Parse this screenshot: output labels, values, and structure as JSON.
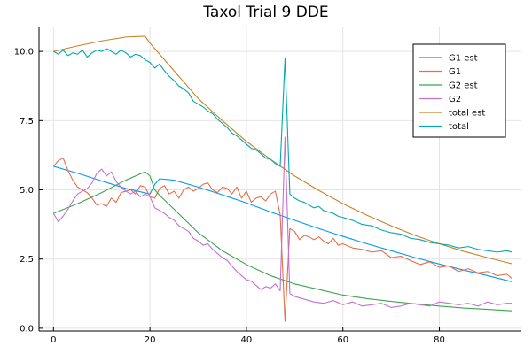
{
  "chart_data": {
    "type": "line",
    "title": "Taxol Trial 9 DDE",
    "xlabel": "",
    "ylabel": "",
    "xlim": [
      -3,
      97
    ],
    "ylim": [
      -0.1,
      10.9
    ],
    "xticks": [
      0,
      20,
      40,
      60,
      80
    ],
    "yticks": [
      0.0,
      2.5,
      5.0,
      7.5,
      10.0
    ],
    "ytick_labels": [
      "0.0",
      "2.5",
      "5.0",
      "7.5",
      "10.0"
    ],
    "grid": true,
    "legend_position": "top-right",
    "series": [
      {
        "name": "G1 est",
        "color": "#009af9",
        "x": [
          0,
          5,
          10,
          15,
          20,
          21,
          22,
          25,
          30,
          35,
          40,
          45,
          50,
          55,
          60,
          65,
          70,
          75,
          80,
          85,
          90,
          95
        ],
        "y": [
          5.85,
          5.6,
          5.32,
          5.05,
          4.85,
          5.2,
          5.4,
          5.35,
          5.1,
          4.82,
          4.53,
          4.2,
          3.9,
          3.6,
          3.32,
          3.05,
          2.8,
          2.55,
          2.32,
          2.1,
          1.9,
          1.68
        ]
      },
      {
        "name": "G1",
        "color": "#e26f46",
        "x": [
          0,
          1,
          2,
          3,
          4,
          5,
          6,
          7,
          8,
          9,
          10,
          11,
          12,
          13,
          14,
          15,
          16,
          17,
          18,
          19,
          20,
          21,
          22,
          23,
          24,
          25,
          26,
          27,
          28,
          29,
          30,
          31,
          32,
          33,
          34,
          35,
          36,
          37,
          38,
          39,
          40,
          41,
          42,
          43,
          44,
          45,
          46,
          47,
          48,
          49,
          50,
          51,
          52,
          53,
          54,
          55,
          56,
          57,
          58,
          59,
          60,
          62,
          64,
          66,
          68,
          70,
          72,
          74,
          76,
          78,
          80,
          82,
          84,
          86,
          88,
          90,
          92,
          94,
          95
        ],
        "y": [
          5.85,
          6.05,
          6.15,
          5.7,
          5.35,
          5.1,
          5.0,
          4.9,
          4.7,
          4.45,
          4.5,
          4.4,
          4.7,
          4.55,
          4.9,
          4.95,
          5.0,
          4.85,
          5.15,
          5.1,
          4.75,
          4.7,
          5.05,
          5.15,
          4.85,
          4.95,
          4.7,
          5.0,
          5.1,
          4.95,
          5.05,
          5.2,
          5.25,
          5.0,
          4.9,
          5.1,
          5.05,
          4.85,
          5.1,
          4.7,
          4.95,
          4.55,
          4.7,
          4.75,
          4.6,
          4.85,
          4.95,
          4.1,
          0.25,
          3.6,
          3.5,
          3.2,
          3.35,
          3.3,
          3.2,
          3.3,
          3.15,
          3.05,
          3.25,
          3.0,
          3.05,
          2.9,
          2.85,
          2.75,
          2.8,
          2.55,
          2.6,
          2.45,
          2.3,
          2.4,
          2.2,
          2.25,
          2.05,
          2.15,
          2.0,
          2.05,
          1.9,
          1.95,
          1.8
        ]
      },
      {
        "name": "G2 est",
        "color": "#3da44d",
        "x": [
          0,
          5,
          10,
          15,
          19,
          20,
          21,
          22,
          25,
          30,
          35,
          40,
          45,
          50,
          55,
          60,
          65,
          70,
          75,
          80,
          85,
          90,
          95
        ],
        "y": [
          4.15,
          4.5,
          4.9,
          5.35,
          5.65,
          5.5,
          5.0,
          4.8,
          4.3,
          3.45,
          2.8,
          2.3,
          1.9,
          1.6,
          1.4,
          1.2,
          1.07,
          0.97,
          0.88,
          0.8,
          0.73,
          0.68,
          0.63
        ]
      },
      {
        "name": "G2",
        "color": "#c271d2",
        "x": [
          0,
          1,
          2,
          3,
          4,
          5,
          6,
          7,
          8,
          9,
          10,
          11,
          12,
          13,
          14,
          15,
          16,
          17,
          18,
          19,
          20,
          21,
          22,
          23,
          24,
          25,
          26,
          27,
          28,
          29,
          30,
          31,
          32,
          33,
          34,
          35,
          36,
          37,
          38,
          39,
          40,
          41,
          42,
          43,
          44,
          45,
          46,
          47,
          48,
          49,
          50,
          52,
          54,
          56,
          58,
          60,
          62,
          64,
          66,
          68,
          70,
          72,
          74,
          76,
          78,
          80,
          82,
          84,
          86,
          88,
          90,
          92,
          94,
          95
        ],
        "y": [
          4.15,
          3.85,
          4.05,
          4.3,
          4.6,
          4.85,
          4.95,
          5.05,
          5.25,
          5.6,
          5.75,
          5.5,
          5.65,
          5.3,
          5.1,
          4.95,
          4.85,
          4.95,
          4.75,
          4.85,
          4.75,
          4.35,
          4.25,
          4.15,
          4.0,
          3.9,
          3.7,
          3.6,
          3.5,
          3.25,
          3.15,
          3.0,
          3.05,
          2.85,
          2.7,
          2.55,
          2.45,
          2.25,
          2.05,
          1.9,
          1.75,
          1.7,
          1.55,
          1.4,
          1.5,
          1.45,
          1.6,
          1.35,
          6.9,
          1.25,
          1.15,
          1.05,
          0.95,
          0.9,
          1.0,
          0.85,
          0.95,
          0.8,
          0.85,
          0.9,
          0.75,
          0.8,
          0.9,
          0.85,
          0.8,
          0.95,
          0.9,
          0.85,
          0.9,
          0.8,
          0.95,
          0.85,
          0.9,
          0.9
        ]
      },
      {
        "name": "total est",
        "color": "#c68225",
        "x": [
          0,
          5,
          10,
          15,
          19,
          20,
          22,
          25,
          30,
          35,
          40,
          45,
          50,
          55,
          60,
          65,
          70,
          75,
          80,
          85,
          90,
          95
        ],
        "y": [
          10.0,
          10.2,
          10.38,
          10.52,
          10.55,
          10.3,
          9.9,
          9.3,
          8.3,
          7.5,
          6.75,
          6.1,
          5.5,
          4.98,
          4.5,
          4.08,
          3.7,
          3.35,
          3.05,
          2.78,
          2.55,
          2.33
        ]
      },
      {
        "name": "total",
        "color": "#00a9ad",
        "x": [
          0,
          1,
          2,
          3,
          4,
          5,
          6,
          7,
          8,
          9,
          10,
          11,
          12,
          13,
          14,
          15,
          16,
          17,
          18,
          19,
          20,
          21,
          22,
          23,
          24,
          25,
          26,
          27,
          28,
          29,
          30,
          31,
          32,
          33,
          34,
          35,
          36,
          37,
          38,
          39,
          40,
          41,
          42,
          43,
          44,
          45,
          46,
          47,
          48,
          49,
          50,
          51,
          52,
          53,
          54,
          55,
          56,
          57,
          58,
          59,
          60,
          62,
          64,
          66,
          68,
          70,
          72,
          74,
          76,
          78,
          80,
          82,
          84,
          86,
          88,
          90,
          92,
          94,
          95
        ],
        "y": [
          10.0,
          9.9,
          10.05,
          9.85,
          9.95,
          9.9,
          10.05,
          9.8,
          9.95,
          10.05,
          10.0,
          10.1,
          10.0,
          9.9,
          10.05,
          9.95,
          9.8,
          9.9,
          9.85,
          9.7,
          9.6,
          9.4,
          9.55,
          9.3,
          9.1,
          8.95,
          8.75,
          8.65,
          8.5,
          8.2,
          8.1,
          8.0,
          7.85,
          7.75,
          7.55,
          7.4,
          7.25,
          7.05,
          6.95,
          6.8,
          6.65,
          6.5,
          6.45,
          6.3,
          6.15,
          6.1,
          5.95,
          5.85,
          9.75,
          4.85,
          4.7,
          4.6,
          4.55,
          4.45,
          4.35,
          4.4,
          4.25,
          4.2,
          4.15,
          4.05,
          4.0,
          3.9,
          3.75,
          3.7,
          3.55,
          3.45,
          3.4,
          3.25,
          3.2,
          3.1,
          3.05,
          3.0,
          2.9,
          2.95,
          2.85,
          2.8,
          2.75,
          2.8,
          2.75
        ]
      }
    ]
  }
}
